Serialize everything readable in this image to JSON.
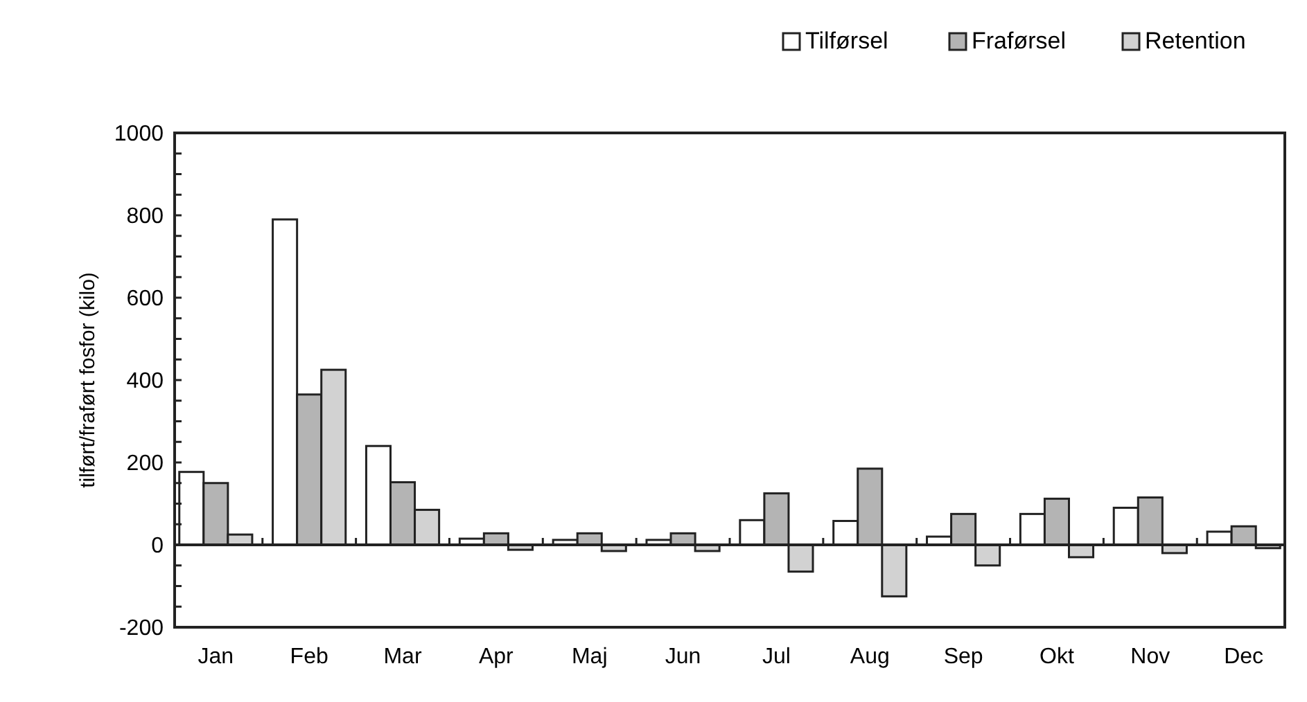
{
  "chart_data": {
    "type": "bar",
    "ylabel": "tilført/fraført fosfor (kilo)",
    "categories": [
      "Jan",
      "Feb",
      "Mar",
      "Apr",
      "Maj",
      "Jun",
      "Jul",
      "Aug",
      "Sep",
      "Okt",
      "Nov",
      "Dec"
    ],
    "series": [
      {
        "name": "Tilførsel",
        "color": "#ffffff",
        "values": [
          177,
          790,
          240,
          15,
          12,
          12,
          60,
          58,
          20,
          75,
          90,
          32
        ]
      },
      {
        "name": "Fraførsel",
        "color": "#b4b4b4",
        "values": [
          150,
          365,
          152,
          28,
          28,
          28,
          125,
          185,
          75,
          112,
          115,
          45
        ]
      },
      {
        "name": "Retention",
        "color": "#d2d2d2",
        "values": [
          25,
          425,
          85,
          -12,
          -15,
          -15,
          -65,
          -125,
          -50,
          -30,
          -20,
          -8
        ]
      }
    ],
    "ylim": [
      -200,
      1000
    ],
    "yticks": [
      -200,
      0,
      200,
      400,
      600,
      800,
      1000
    ],
    "grid": false,
    "ref_lines": [
      {
        "axis": "y",
        "value": 0,
        "color": "#222222"
      }
    ],
    "legend": "top right"
  }
}
